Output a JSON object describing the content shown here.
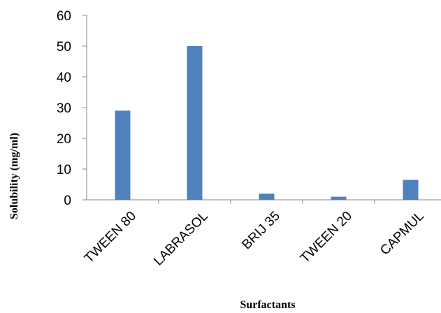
{
  "chart_data": {
    "type": "bar",
    "title": "",
    "xlabel": "Surfactants",
    "ylabel": "Solubility (mg/ml)",
    "categories": [
      "TWEEN 80",
      "LABRASOL",
      "BRIJ 35",
      "TWEEN 20",
      "CAPMUL"
    ],
    "values": [
      29,
      50,
      2,
      1,
      6.5
    ],
    "ylim": [
      0,
      60
    ],
    "yticks": [
      0,
      10,
      20,
      30,
      40,
      50,
      60
    ],
    "bar_color": "#4f81bd",
    "grid": false,
    "legend": "none"
  }
}
